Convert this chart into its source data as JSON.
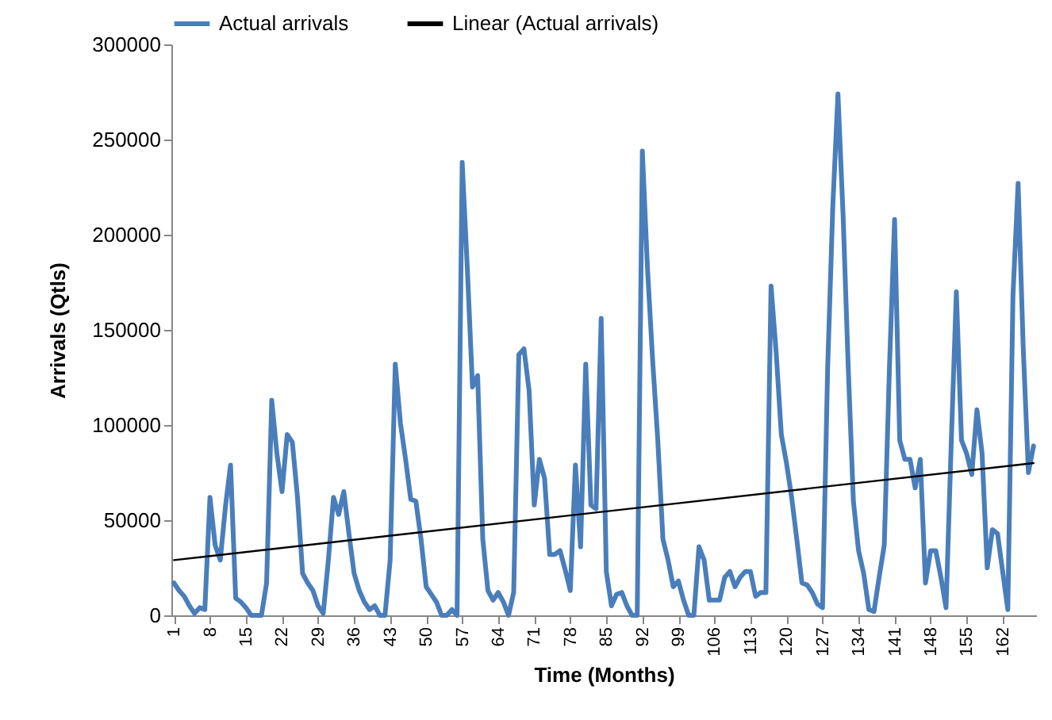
{
  "chart_data": {
    "type": "line",
    "xlabel": "Time (Months)",
    "ylabel": "Arrivals (Qtls)",
    "legend": "top",
    "grid": false,
    "marker": "none",
    "x": [
      1,
      2,
      3,
      4,
      5,
      6,
      7,
      8,
      9,
      10,
      11,
      12,
      13,
      14,
      15,
      16,
      17,
      18,
      19,
      20,
      21,
      22,
      23,
      24,
      25,
      26,
      27,
      28,
      29,
      30,
      31,
      32,
      33,
      34,
      35,
      36,
      37,
      38,
      39,
      40,
      41,
      42,
      43,
      44,
      45,
      46,
      47,
      48,
      49,
      50,
      51,
      52,
      53,
      54,
      55,
      56,
      57,
      58,
      59,
      60,
      61,
      62,
      63,
      64,
      65,
      66,
      67,
      68,
      69,
      70,
      71,
      72,
      73,
      74,
      75,
      76,
      77,
      78,
      79,
      80,
      81,
      82,
      83,
      84,
      85,
      86,
      87,
      88,
      89,
      90,
      91,
      92,
      93,
      94,
      95,
      96,
      97,
      98,
      99,
      100,
      101,
      102,
      103,
      104,
      105,
      106,
      107,
      108,
      109,
      110,
      111,
      112,
      113,
      114,
      115,
      116,
      117,
      118,
      119,
      120,
      121,
      122,
      123,
      124,
      125,
      126,
      127,
      128,
      129,
      130,
      131,
      132,
      133,
      134,
      135,
      136,
      137,
      138,
      139,
      140,
      141,
      142,
      143,
      144,
      145,
      146,
      147,
      148,
      149,
      150,
      151,
      152,
      153,
      154,
      155,
      156,
      157,
      158,
      159,
      160,
      161,
      162,
      163,
      164,
      165,
      166,
      167,
      168
    ],
    "xlim": [
      0.5,
      168.5
    ],
    "xticks": [
      1,
      8,
      15,
      22,
      29,
      36,
      43,
      50,
      57,
      64,
      71,
      78,
      85,
      92,
      99,
      106,
      113,
      120,
      127,
      134,
      141,
      148,
      155,
      162
    ],
    "ylim": [
      0,
      300000
    ],
    "yticks": [
      0,
      50000,
      100000,
      150000,
      200000,
      250000,
      300000
    ],
    "series": [
      {
        "name": "Actual arrivals",
        "color": "#4a7ebb",
        "line_style": "solid",
        "values": [
          17000,
          13000,
          10000,
          5000,
          1000,
          4000,
          3000,
          62000,
          37000,
          29000,
          57000,
          79000,
          9000,
          7000,
          4000,
          0,
          0,
          0,
          17000,
          113000,
          85000,
          65000,
          95000,
          91000,
          62000,
          22000,
          17000,
          13000,
          5000,
          1000,
          29000,
          62000,
          53000,
          65000,
          43000,
          22000,
          13000,
          7000,
          3000,
          5000,
          0,
          0,
          29000,
          132000,
          101000,
          82000,
          61000,
          60000,
          40000,
          15000,
          11000,
          7000,
          0,
          0,
          3000,
          0,
          238000,
          182000,
          120000,
          126000,
          40000,
          13000,
          8000,
          12000,
          7000,
          0,
          12000,
          137000,
          140000,
          118000,
          58000,
          82000,
          72000,
          32000,
          32000,
          34000,
          24000,
          13000,
          79000,
          36000,
          132000,
          58000,
          56000,
          156000,
          23000,
          5000,
          11000,
          12000,
          5000,
          0,
          0,
          244000,
          182000,
          134000,
          92000,
          40000,
          29000,
          15000,
          18000,
          8000,
          0,
          0,
          36000,
          29000,
          8000,
          8000,
          8000,
          20000,
          23000,
          15000,
          20000,
          23000,
          23000,
          10000,
          12000,
          12000,
          173000,
          138000,
          95000,
          80000,
          62000,
          40000,
          17000,
          16000,
          12000,
          6000,
          4000,
          130000,
          215000,
          274000,
          210000,
          130000,
          60000,
          34000,
          22000,
          3000,
          2000,
          20000,
          37000,
          130000,
          208000,
          92000,
          82000,
          82000,
          67000,
          82000,
          17000,
          34000,
          34000,
          20000,
          4000,
          90000,
          170000,
          92000,
          85000,
          74000,
          108000,
          85000,
          25000,
          45000,
          43000,
          23000,
          3000,
          168000,
          227000,
          140000,
          75000,
          89000
        ]
      },
      {
        "name": "Linear (Actual arrivals)",
        "type": "line",
        "color": "#000000",
        "line_style": "solid",
        "x": [
          1,
          168
        ],
        "values": [
          29000,
          80000
        ]
      }
    ]
  }
}
